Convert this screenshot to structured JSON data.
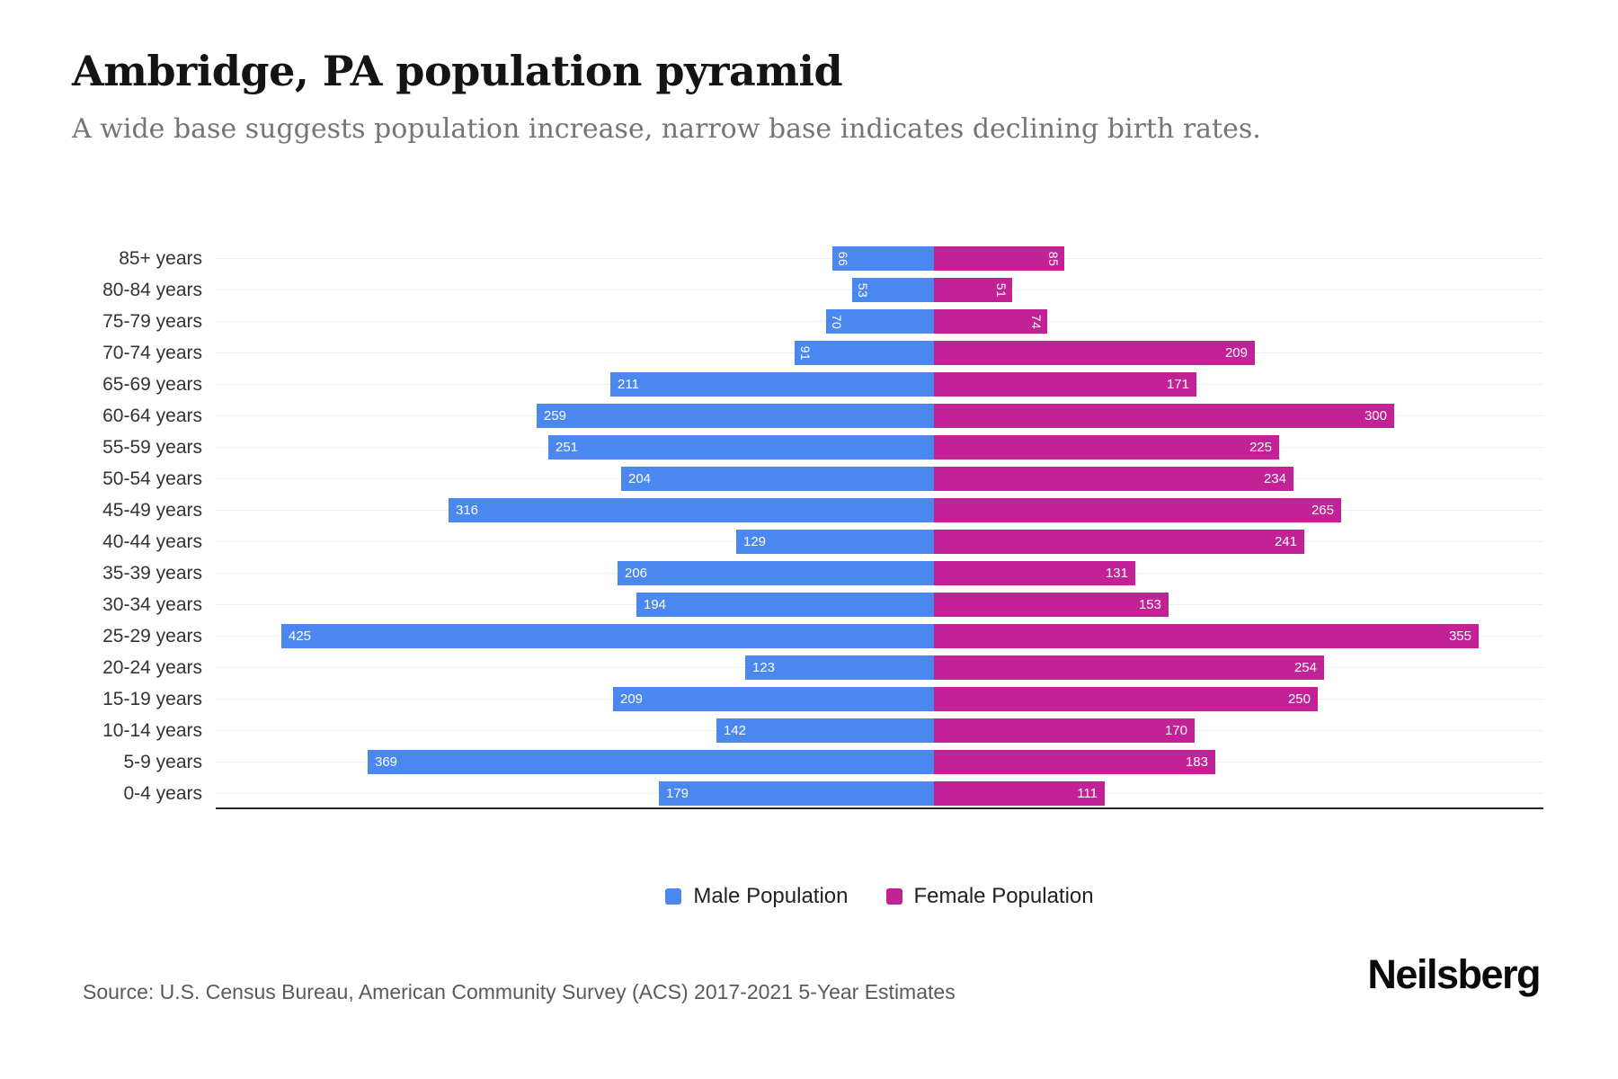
{
  "header": {
    "title": "Ambridge, PA population pyramid",
    "subtitle": "A wide base suggests population increase, narrow base indicates declining birth rates."
  },
  "chart_data": {
    "type": "bar",
    "variant": "population-pyramid",
    "title": "Ambridge, PA population pyramid",
    "subtitle": "A wide base suggests population increase, narrow base indicates declining birth rates.",
    "categories": [
      "85+ years",
      "80-84 years",
      "75-79 years",
      "70-74 years",
      "65-69 years",
      "60-64 years",
      "55-59 years",
      "50-54 years",
      "45-49 years",
      "40-44 years",
      "35-39 years",
      "30-34 years",
      "25-29 years",
      "20-24 years",
      "15-19 years",
      "10-14 years",
      "5-9 years",
      "0-4 years"
    ],
    "series": [
      {
        "name": "Male Population",
        "color": "#4a87ee",
        "values": [
          66,
          53,
          70,
          91,
          211,
          259,
          251,
          204,
          316,
          129,
          206,
          194,
          425,
          123,
          209,
          142,
          369,
          179
        ]
      },
      {
        "name": "Female Population",
        "color": "#c32196",
        "values": [
          85,
          51,
          74,
          209,
          171,
          300,
          225,
          234,
          265,
          241,
          131,
          153,
          355,
          254,
          250,
          170,
          183,
          111
        ]
      }
    ],
    "legend": [
      {
        "label": "Male Population",
        "color": "#4a87ee"
      },
      {
        "label": "Female Population",
        "color": "#c32196"
      }
    ],
    "value_labels": "inside-outer-end, rotated 90deg when value < 100",
    "grid": true,
    "legend_position": "bottom-center",
    "xlabel": "",
    "ylabel": ""
  },
  "footer": {
    "source": "Source: U.S. Census Bureau, American Community Survey (ACS) 2017-2021 5-Year Estimates",
    "brand": "Neilsberg"
  }
}
